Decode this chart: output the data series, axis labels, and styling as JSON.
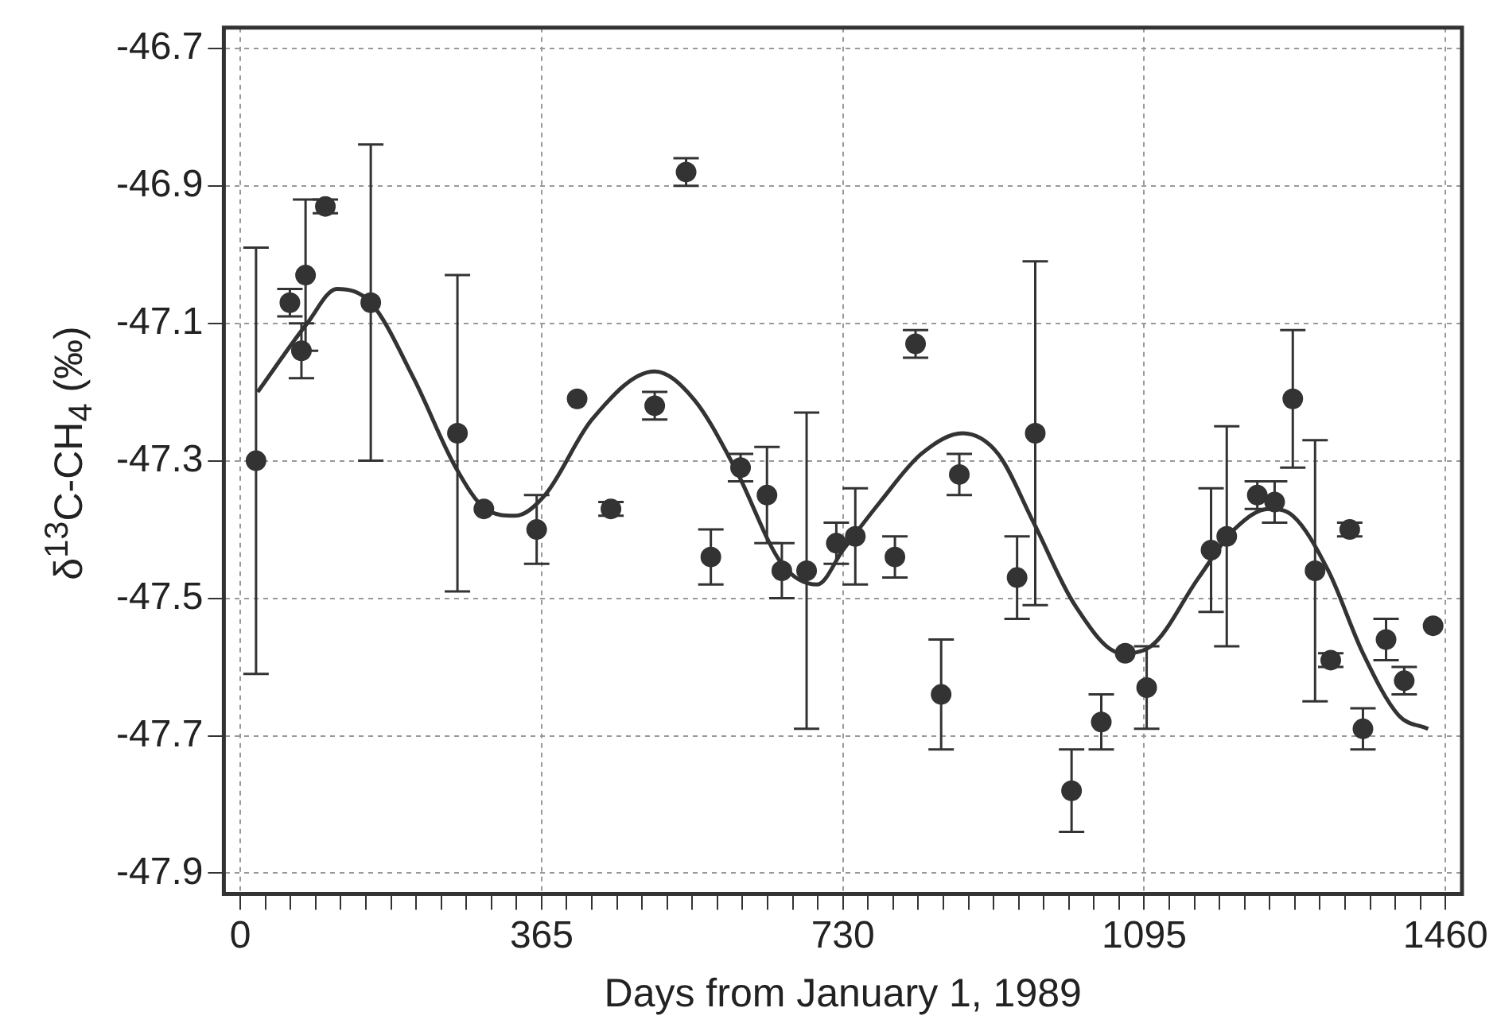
{
  "chart_data": {
    "type": "scatter",
    "xlabel": "Days from January 1, 1989",
    "ylabel": "δ$^{13}$C-CH$_{4}$ (‰)",
    "xlim": [
      -20,
      1480
    ],
    "ylim": [
      -47.93,
      -46.67
    ],
    "xticks": [
      0,
      {
        "value": 30.4,
        "label": null
      },
      {
        "value": 60.8,
        "label": null
      },
      {
        "value": 91.3,
        "label": null
      },
      {
        "value": 121.7,
        "label": null
      },
      {
        "value": 152.1,
        "label": null
      },
      {
        "value": 182.5,
        "label": null
      },
      {
        "value": 212.9,
        "label": null
      },
      {
        "value": 243.3,
        "label": null
      },
      {
        "value": 273.8,
        "label": null
      },
      {
        "value": 304.2,
        "label": null
      },
      {
        "value": 334.6,
        "label": null
      },
      365,
      {
        "value": 395.4,
        "label": null
      },
      {
        "value": 425.8,
        "label": null
      },
      {
        "value": 456.3,
        "label": null
      },
      {
        "value": 486.7,
        "label": null
      },
      {
        "value": 517.1,
        "label": null
      },
      {
        "value": 547.5,
        "label": null
      },
      {
        "value": 577.9,
        "label": null
      },
      {
        "value": 608.3,
        "label": null
      },
      {
        "value": 638.8,
        "label": null
      },
      {
        "value": 669.2,
        "label": null
      },
      {
        "value": 699.6,
        "label": null
      },
      730,
      {
        "value": 760.4,
        "label": null
      },
      {
        "value": 790.8,
        "label": null
      },
      {
        "value": 821.3,
        "label": null
      },
      {
        "value": 851.7,
        "label": null
      },
      {
        "value": 882.1,
        "label": null
      },
      {
        "value": 912.5,
        "label": null
      },
      {
        "value": 942.9,
        "label": null
      },
      {
        "value": 973.3,
        "label": null
      },
      {
        "value": 1003.8,
        "label": null
      },
      {
        "value": 1034.2,
        "label": null
      },
      {
        "value": 1064.6,
        "label": null
      },
      1095,
      {
        "value": 1125.4,
        "label": null
      },
      {
        "value": 1155.8,
        "label": null
      },
      {
        "value": 1186.3,
        "label": null
      },
      {
        "value": 1216.7,
        "label": null
      },
      {
        "value": 1247.1,
        "label": null
      },
      {
        "value": 1277.5,
        "label": null
      },
      {
        "value": 1307.9,
        "label": null
      },
      {
        "value": 1338.3,
        "label": null
      },
      {
        "value": 1368.8,
        "label": null
      },
      {
        "value": 1399.2,
        "label": null
      },
      {
        "value": 1429.6,
        "label": null
      },
      1460
    ],
    "yticks": [
      -46.7,
      -46.9,
      -47.1,
      -47.3,
      -47.5,
      -47.7,
      -47.9
    ],
    "grid": true,
    "series": [
      {
        "color": "#333333",
        "marker": "circle",
        "x": [
          19,
          60,
          74,
          79,
          103,
          158,
          263,
          295,
          359,
          408,
          449,
          502,
          540,
          570,
          606,
          638,
          656,
          686,
          722,
          745,
          793,
          818,
          849,
          871,
          941,
          963,
          1007,
          1043,
          1072,
          1098,
          1176,
          1195,
          1232,
          1253,
          1275,
          1302,
          1321,
          1344,
          1360,
          1388,
          1410,
          1445
        ],
        "values": [
          -47.3,
          -47.07,
          -47.14,
          -47.03,
          -46.93,
          -47.07,
          -47.26,
          -47.37,
          -47.4,
          -47.21,
          -47.37,
          -47.22,
          -46.88,
          -47.44,
          -47.31,
          -47.35,
          -47.46,
          -47.46,
          -47.42,
          -47.41,
          -47.44,
          -47.13,
          -47.64,
          -47.32,
          -47.47,
          -47.26,
          -47.78,
          -47.68,
          -47.58,
          -47.63,
          -47.43,
          -47.41,
          -47.35,
          -47.36,
          -47.21,
          -47.46,
          -47.59,
          -47.4,
          -47.69,
          -47.56,
          -47.62,
          -47.54
        ],
        "errors": [
          0.31,
          0.02,
          0.04,
          0.11,
          0.01,
          0.23,
          0.23,
          null,
          0.05,
          null,
          0.01,
          0.02,
          0.02,
          0.04,
          0.02,
          0.07,
          0.04,
          0.23,
          0.03,
          0.07,
          0.03,
          0.02,
          0.08,
          0.03,
          0.06,
          0.25,
          0.06,
          0.04,
          null,
          0.06,
          0.09,
          0.16,
          0.02,
          0.03,
          0.1,
          0.19,
          0.01,
          0.01,
          0.03,
          0.03,
          0.02,
          null
        ]
      },
      {
        "type": "line",
        "color": "#333333",
        "marker": "none",
        "x": [
          21,
          81,
          117,
          158,
          210,
          261,
          297,
          333,
          369,
          426,
          502,
          549,
          599,
          656,
          699,
          730,
          775,
          825,
          875,
          918,
          961,
          1011,
          1068,
          1103,
          1161,
          1204,
          1246,
          1275,
          1318,
          1360,
          1403,
          1439
        ],
        "values": [
          -47.2,
          -47.1,
          -47.05,
          -47.07,
          -47.18,
          -47.31,
          -47.37,
          -47.38,
          -47.35,
          -47.24,
          -47.17,
          -47.21,
          -47.31,
          -47.45,
          -47.48,
          -47.43,
          -47.36,
          -47.29,
          -47.26,
          -47.29,
          -47.39,
          -47.51,
          -47.58,
          -47.57,
          -47.47,
          -47.4,
          -47.37,
          -47.38,
          -47.46,
          -47.58,
          -47.67,
          -47.69
        ]
      }
    ]
  }
}
